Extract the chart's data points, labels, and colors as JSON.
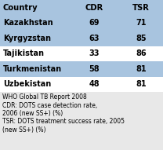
{
  "countries": [
    "Kazakhstan",
    "Kyrgyzstan",
    "Tajikistan",
    "Turkmenistan",
    "Uzbekistan"
  ],
  "cdr": [
    69,
    63,
    33,
    58,
    48
  ],
  "tsr": [
    71,
    85,
    86,
    81,
    81
  ],
  "header": [
    "Country",
    "CDR",
    "TSR"
  ],
  "highlighted_rows": [
    0,
    1,
    3
  ],
  "highlight_color": "#a8c4df",
  "header_color": "#a8c4df",
  "white_color": "#ffffff",
  "footnotes": [
    "WHO Global TB Report 2008",
    "CDR: DOTS case detection rate,",
    "2006 (new SS+) (%)",
    "TSR: DOTS treatment success rate, 2005",
    "(new SS+) (%)"
  ],
  "bg_color": "#d0dfe8",
  "outer_bg": "#d0dfe8"
}
